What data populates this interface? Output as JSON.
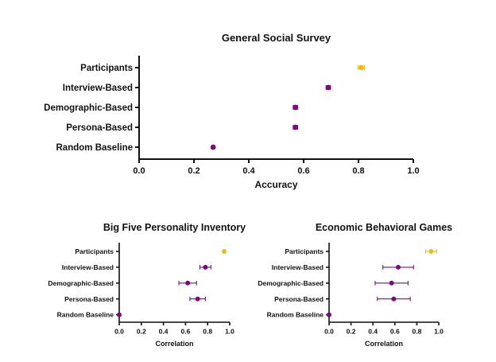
{
  "colors": {
    "participants": "#f0b823",
    "model": "#7b0a7e"
  },
  "chart_data": [
    {
      "type": "scatter",
      "title": "General Social Survey",
      "xlabel": "Accuracy",
      "xlim": [
        0,
        1.0
      ],
      "xticks": [
        "0.0",
        "0.2",
        "0.4",
        "0.6",
        "0.8",
        "1.0"
      ],
      "categories": [
        "Participants",
        "Interview-Based",
        "Demographic-Based",
        "Persona-Based",
        "Random Baseline"
      ],
      "values": [
        0.81,
        0.69,
        0.57,
        0.57,
        0.27
      ],
      "errors": [
        0.012,
        0.008,
        0.008,
        0.008,
        0.004
      ]
    },
    {
      "type": "scatter",
      "title": "Big Five Personality Inventory",
      "xlabel": "Correlation",
      "xlim": [
        0,
        1.0
      ],
      "xticks": [
        "0.0",
        "0.2",
        "0.4",
        "0.6",
        "0.8",
        "1.0"
      ],
      "categories": [
        "Participants",
        "Interview-Based",
        "Demographic-Based",
        "Persona-Based",
        "Random Baseline"
      ],
      "values": [
        0.95,
        0.78,
        0.62,
        0.71,
        0.0
      ],
      "errors": [
        0.0,
        0.05,
        0.08,
        0.07,
        0.0
      ]
    },
    {
      "type": "scatter",
      "title": "Economic Behavioral Games",
      "xlabel": "Correlation",
      "xlim": [
        0,
        1.0
      ],
      "xticks": [
        "0.0",
        "0.2",
        "0.4",
        "0.6",
        "0.8",
        "1.0"
      ],
      "categories": [
        "Participants",
        "Interview-Based",
        "Demographic-Based",
        "Persona-Based",
        "Random Baseline"
      ],
      "values": [
        0.93,
        0.63,
        0.57,
        0.59,
        0.0
      ],
      "errors": [
        0.05,
        0.14,
        0.15,
        0.15,
        0.0
      ]
    }
  ]
}
